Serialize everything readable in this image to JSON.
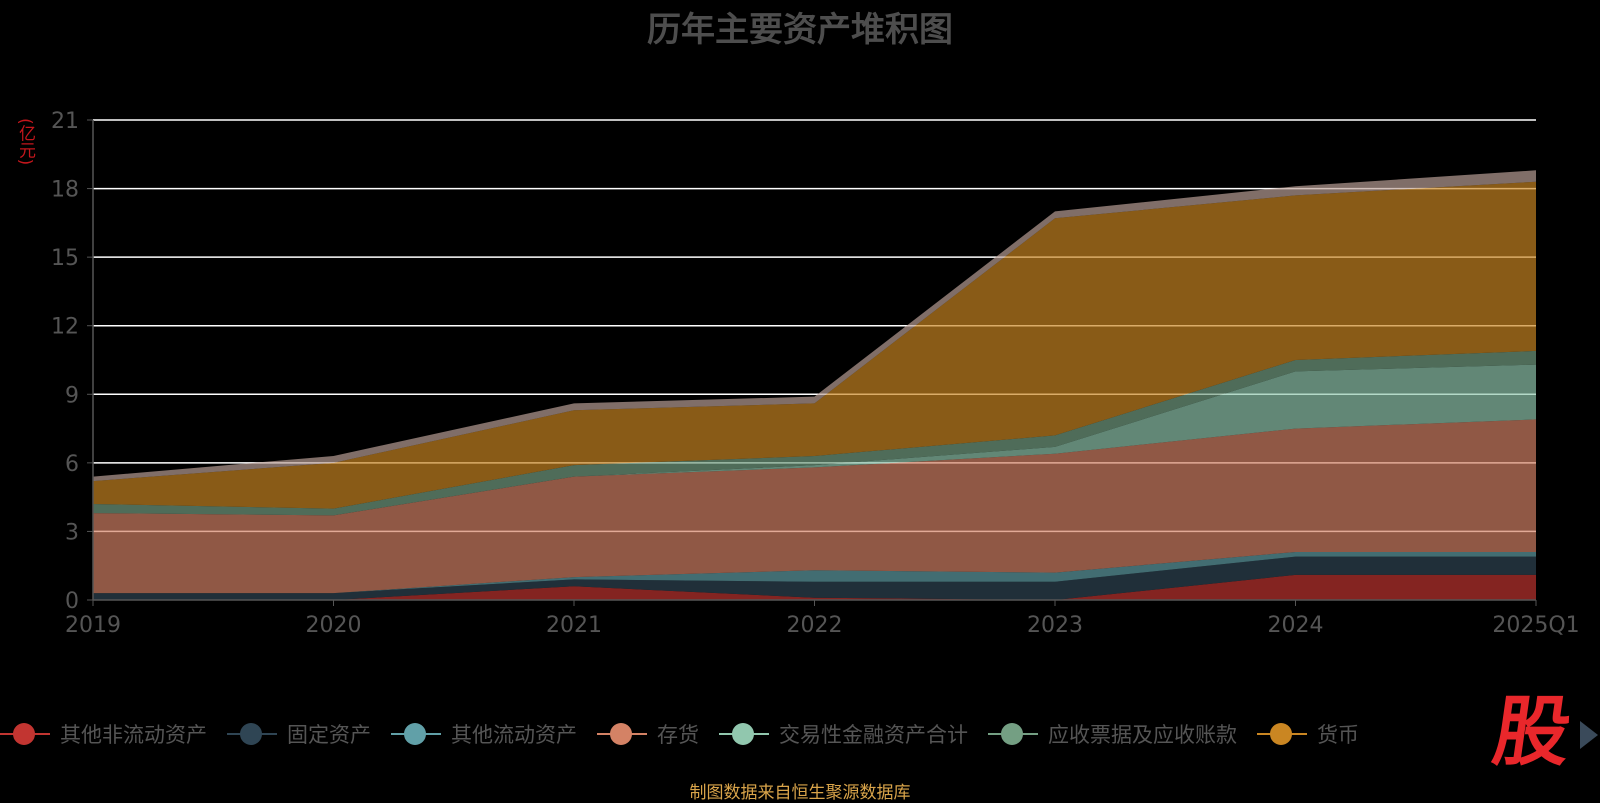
{
  "chart_data": {
    "type": "area",
    "stacked": true,
    "title": "历年主要资产堆积图",
    "y_unit": "(亿元)",
    "ylim": [
      0,
      21
    ],
    "y_ticks": [
      0,
      3,
      6,
      9,
      12,
      15,
      18,
      21
    ],
    "categories": [
      "2019",
      "2020",
      "2021",
      "2022",
      "2023",
      "2024",
      "2025Q1"
    ],
    "series": [
      {
        "name": "其他非流动资产",
        "color": "#c23531",
        "values": [
          0.0,
          0.0,
          0.6,
          0.1,
          0.0,
          1.1,
          1.1
        ]
      },
      {
        "name": "固定资产",
        "color": "#2f4554",
        "values": [
          0.3,
          0.3,
          0.3,
          0.7,
          0.8,
          0.8,
          0.8
        ]
      },
      {
        "name": "其他流动资产",
        "color": "#61a0a8",
        "values": [
          0.0,
          0.0,
          0.1,
          0.5,
          0.4,
          0.2,
          0.2
        ]
      },
      {
        "name": "存货",
        "color": "#d48265",
        "values": [
          3.5,
          3.4,
          4.4,
          4.5,
          5.2,
          5.4,
          5.8
        ]
      },
      {
        "name": "交易性金融资产合计",
        "color": "#91c7ae",
        "values": [
          0.0,
          0.0,
          0.0,
          0.1,
          0.3,
          2.5,
          2.4
        ]
      },
      {
        "name": "应收票据及应收账款",
        "color": "#749f83",
        "values": [
          0.4,
          0.3,
          0.5,
          0.4,
          0.5,
          0.5,
          0.6
        ]
      },
      {
        "name": "货币",
        "color": "#ca8622",
        "values": [
          1.0,
          2.0,
          2.4,
          2.3,
          9.5,
          7.2,
          7.4
        ]
      },
      {
        "name": "",
        "color": "#bda29a",
        "values": [
          0.2,
          0.3,
          0.3,
          0.3,
          0.3,
          0.4,
          0.5
        ]
      }
    ],
    "grid": true,
    "legend_position": "bottom"
  },
  "legend": {
    "items": [
      {
        "label": "其他非流动资产",
        "color": "#c23531"
      },
      {
        "label": "固定资产",
        "color": "#2f4554"
      },
      {
        "label": "其他流动资产",
        "color": "#61a0a8"
      },
      {
        "label": "存货",
        "color": "#d48265"
      },
      {
        "label": "交易性金融资产合计",
        "color": "#91c7ae"
      },
      {
        "label": "应收票据及应收账款",
        "color": "#749f83"
      },
      {
        "label": "货币",
        "color": "#ca8622"
      }
    ]
  },
  "watermark": "股",
  "source": "制图数据来自恒生聚源数据库"
}
